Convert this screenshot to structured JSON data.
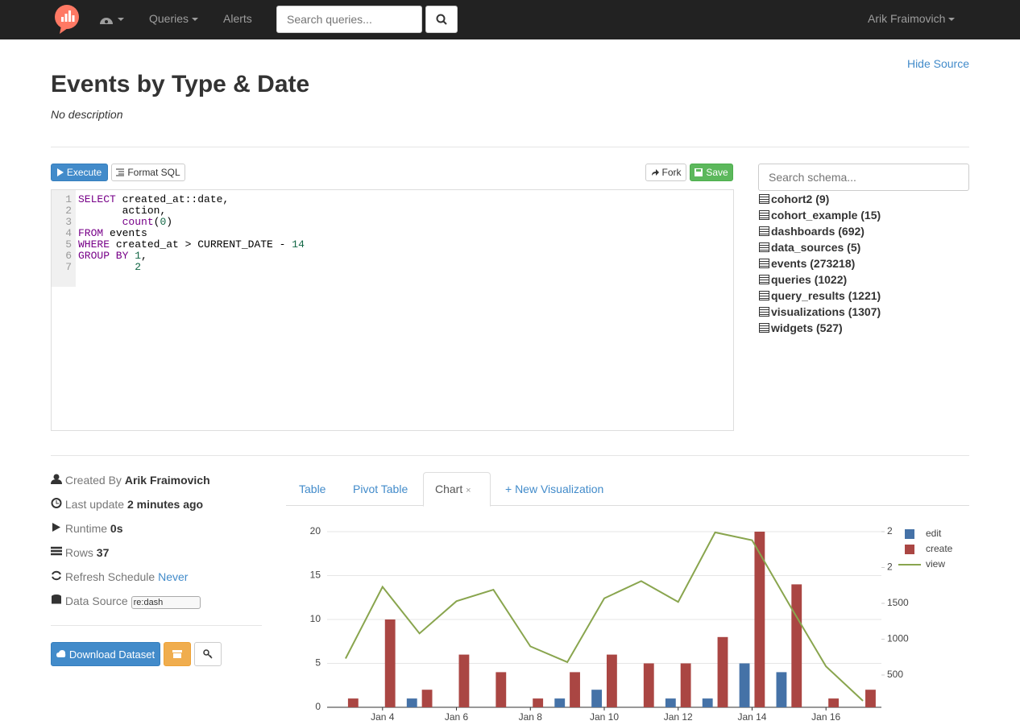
{
  "navbar": {
    "links": [
      "Queries",
      "Alerts"
    ],
    "search_placeholder": "Search queries...",
    "user": "Arik Fraimovich"
  },
  "header": {
    "hide_source": "Hide Source",
    "title": "Events by Type & Date",
    "description": "No description"
  },
  "editor": {
    "execute": "Execute",
    "format": "Format SQL",
    "fork": "Fork",
    "save": "Save",
    "line_numbers": [
      1,
      2,
      3,
      4,
      5,
      6,
      7
    ],
    "lines": [
      [
        {
          "text": "SELECT",
          "style": "keyword"
        },
        {
          "text": " created_at::date,",
          "style": "plain"
        }
      ],
      [
        {
          "text": "       action,",
          "style": "plain"
        }
      ],
      [
        {
          "text": "       ",
          "style": "plain"
        },
        {
          "text": "count",
          "style": "function"
        },
        {
          "text": "(",
          "style": "plain"
        },
        {
          "text": "0",
          "style": "number"
        },
        {
          "text": ")",
          "style": "plain"
        }
      ],
      [
        {
          "text": "FROM",
          "style": "keyword"
        },
        {
          "text": " events",
          "style": "plain"
        }
      ],
      [
        {
          "text": "WHERE",
          "style": "keyword"
        },
        {
          "text": " created_at > CURRENT_DATE - ",
          "style": "plain"
        },
        {
          "text": "14",
          "style": "number"
        }
      ],
      [
        {
          "text": "GROUP BY",
          "style": "keyword"
        },
        {
          "text": " ",
          "style": "plain"
        },
        {
          "text": "1",
          "style": "number"
        },
        {
          "text": ",",
          "style": "plain"
        }
      ],
      [
        {
          "text": "         ",
          "style": "plain"
        },
        {
          "text": "2",
          "style": "number"
        }
      ]
    ]
  },
  "schema": {
    "search_placeholder": "Search schema...",
    "tables": [
      "cohort2 (9)",
      "cohort_example (15)",
      "dashboards (692)",
      "data_sources (5)",
      "events (273218)",
      "queries (1022)",
      "query_results (1221)",
      "visualizations (1307)",
      "widgets (527)"
    ]
  },
  "info": {
    "rows": [
      {
        "label": "Created By",
        "value": "Arik Fraimovich"
      },
      {
        "label": "Last update",
        "value": "2 minutes ago"
      },
      {
        "label": "Runtime",
        "value": "0s"
      },
      {
        "label": "Rows",
        "value": 37
      },
      {
        "label": "Refresh Schedule",
        "value": "Never"
      },
      {
        "label": "Data Source",
        "value": "re:dash"
      }
    ],
    "download": "Download Dataset"
  },
  "tabs": {
    "items": [
      "Table",
      "Pivot Table",
      "Chart",
      "+ New Visualization"
    ],
    "close": "×"
  },
  "chart_data": {
    "type": "bar",
    "categories": [
      null,
      "Jan 4",
      null,
      "Jan 6",
      null,
      "Jan 8",
      null,
      "Jan 10",
      null,
      "Jan 12",
      null,
      "Jan 14",
      null,
      "Jan 16",
      null
    ],
    "series": [
      {
        "name": "edit",
        "color": "#4572a7",
        "type": "bar",
        "values": [
          null,
          null,
          1,
          null,
          null,
          null,
          1,
          2,
          null,
          1,
          1,
          5,
          4,
          null,
          null
        ]
      },
      {
        "name": "create",
        "color": "#aa4643",
        "type": "bar",
        "values": [
          1,
          10,
          2,
          6,
          4,
          1,
          4,
          6,
          5,
          5,
          8,
          20,
          14,
          1,
          2
        ]
      },
      {
        "name": "view",
        "color": "#89a54e",
        "type": "line",
        "axis": "y2",
        "values": [
          730,
          1730,
          1080,
          1530,
          1690,
          900,
          680,
          1570,
          1810,
          1520,
          2490,
          2380,
          1490,
          620,
          140
        ]
      }
    ],
    "ylim": [
      0,
      20
    ],
    "yticks": [
      0,
      5,
      10,
      15,
      20
    ],
    "y2lim": [
      50,
      2500
    ],
    "y2ticks": [
      500,
      1000,
      1500,
      {
        "value": 2000,
        "label": "2"
      },
      {
        "value": 2500,
        "label": "2"
      }
    ],
    "grid": true,
    "legend": "top-right"
  }
}
